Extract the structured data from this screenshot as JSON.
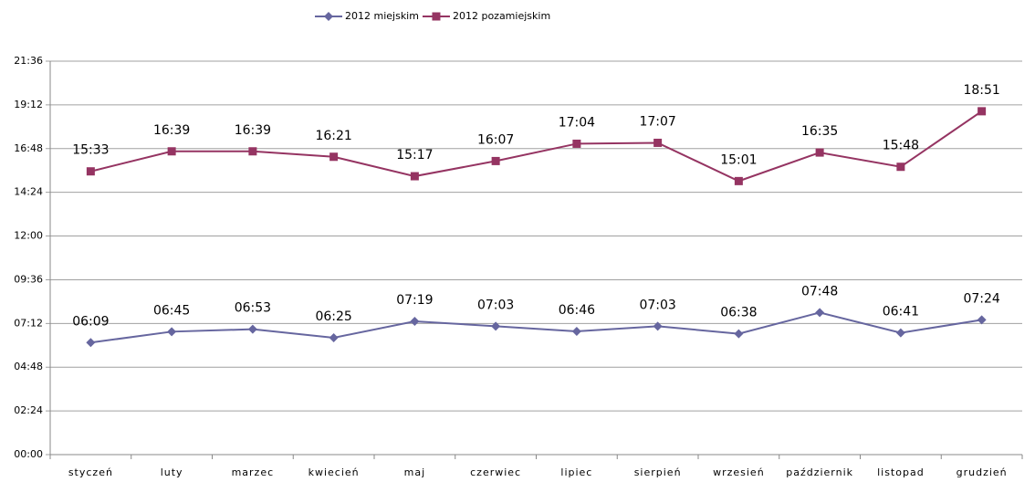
{
  "chart_data": {
    "type": "line",
    "categories": [
      "styczeń",
      "luty",
      "marzec",
      "kwiecień",
      "maj",
      "czerwiec",
      "lipiec",
      "sierpień",
      "wrzesień",
      "październik",
      "listopad",
      "grudzień"
    ],
    "series": [
      {
        "name": "2012 miejskim",
        "color": "#66669f",
        "marker": "diamond",
        "values": [
          369,
          405,
          413,
          385,
          439,
          423,
          406,
          423,
          398,
          468,
          401,
          444
        ],
        "value_labels": [
          "06:09",
          "06:45",
          "06:53",
          "06:25",
          "07:19",
          "07:03",
          "06:46",
          "07:03",
          "06:38",
          "07:48",
          "06:41",
          "07:24"
        ]
      },
      {
        "name": "2012 pozamiejskim",
        "color": "#953462",
        "marker": "square",
        "values": [
          933,
          999,
          999,
          981,
          917,
          967,
          1024,
          1027,
          901,
          995,
          948,
          1131
        ],
        "value_labels": [
          "15:33",
          "16:39",
          "16:39",
          "16:21",
          "15:17",
          "16:07",
          "17:04",
          "17:07",
          "15:01",
          "16:35",
          "15:48",
          "18:51"
        ]
      }
    ],
    "ylim": [
      0,
      1296
    ],
    "yticks": [
      {
        "value": 0,
        "label": "00:00"
      },
      {
        "value": 144,
        "label": "02:24"
      },
      {
        "value": 288,
        "label": "04:48"
      },
      {
        "value": 432,
        "label": "07:12"
      },
      {
        "value": 576,
        "label": "09:36"
      },
      {
        "value": 720,
        "label": "12:00"
      },
      {
        "value": 864,
        "label": "14:24"
      },
      {
        "value": 1008,
        "label": "16:48"
      },
      {
        "value": 1152,
        "label": "19:12"
      },
      {
        "value": 1296,
        "label": "21:36"
      }
    ],
    "grid": true,
    "legend": "top"
  }
}
